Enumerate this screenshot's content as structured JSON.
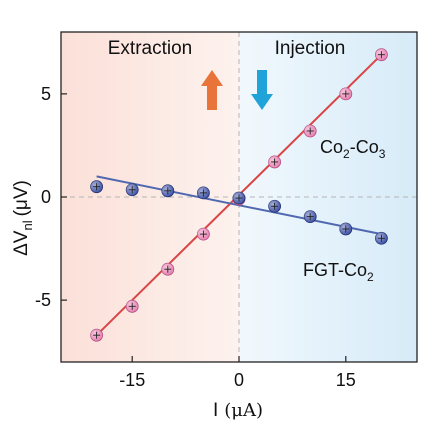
{
  "chart_data": {
    "type": "scatter",
    "xlabel": {
      "main": "I",
      "unit": "(μA)"
    },
    "ylabel": {
      "main": "ΔV",
      "sub": "nl",
      "unit": "(μV)"
    },
    "xlim": [
      -25,
      25
    ],
    "ylim": [
      -8,
      8
    ],
    "xticks": [
      -15,
      0,
      15
    ],
    "yticks": [
      -5,
      0,
      5
    ],
    "grid": false,
    "zero_lines": true,
    "regions": [
      {
        "label": "Extraction",
        "x_from": -25,
        "x_to": 0,
        "color": "#fbe3dc",
        "arrow": "up",
        "arrow_color": "#e8743a"
      },
      {
        "label": "Injection",
        "x_from": 0,
        "x_to": 25,
        "color": "#dcedf8",
        "arrow": "down",
        "arrow_color": "#1fa3d9"
      }
    ],
    "series": [
      {
        "label_base": "Co",
        "label_sub1": "2",
        "label_mid": "-Co",
        "label_sub2": "3",
        "marker_color": "#e77fb0",
        "line_color": "#d94545",
        "x": [
          -20,
          -15,
          -10,
          -5,
          0,
          5,
          10,
          15,
          20
        ],
        "y": [
          -6.7,
          -5.3,
          -3.5,
          -1.8,
          -0.1,
          1.7,
          3.2,
          5.0,
          6.9
        ],
        "fit": [
          [
            -20,
            -6.7
          ],
          [
            20,
            6.9
          ]
        ]
      },
      {
        "label_base": "FGT-Co",
        "label_sub1": "2",
        "marker_color": "#3a4fa6",
        "line_color": "#5068b0",
        "x": [
          -20,
          -15,
          -10,
          -5,
          0,
          5,
          10,
          15,
          20
        ],
        "y": [
          0.5,
          0.35,
          0.3,
          0.2,
          -0.05,
          -0.45,
          -0.95,
          -1.55,
          -2.0
        ],
        "fit": [
          [
            -20,
            1.0
          ],
          [
            20,
            -1.8
          ]
        ]
      }
    ]
  }
}
